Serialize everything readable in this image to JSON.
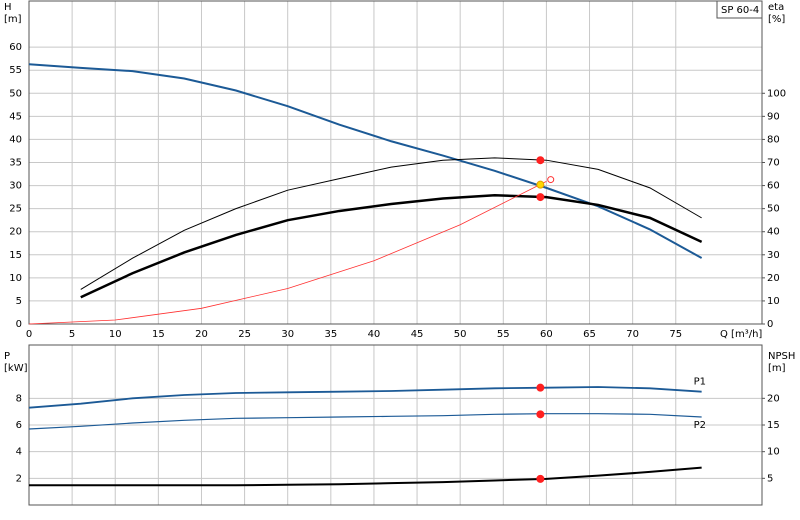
{
  "chart_data": [
    {
      "type": "line",
      "title": "SP 60-4",
      "ylabel": [
        "H",
        "[m]"
      ],
      "y2label": [
        "eta",
        "[%]"
      ],
      "xlabel": "Q [m³/h]",
      "xlim": [
        0,
        85
      ],
      "xticks": [
        0,
        5,
        10,
        15,
        20,
        25,
        30,
        35,
        40,
        45,
        50,
        55,
        60,
        65,
        70,
        75
      ],
      "ylim": [
        0,
        70
      ],
      "yticks": [
        0,
        5,
        10,
        15,
        20,
        25,
        30,
        35,
        40,
        45,
        50,
        55,
        60
      ],
      "y2lim": [
        0,
        140
      ],
      "y2ticks": [
        0,
        10,
        20,
        30,
        40,
        50,
        60,
        70,
        80,
        90,
        100
      ],
      "grid": true,
      "series": [
        {
          "color": "#1c5a96",
          "line_width": 2,
          "axis": "y",
          "x": [
            0,
            6,
            12,
            18,
            24,
            30,
            36,
            42,
            48,
            54,
            60,
            66,
            72,
            78
          ],
          "values": [
            56.3,
            55.5,
            54.8,
            53.2,
            50.6,
            47.2,
            43.2,
            39.6,
            36.5,
            33.2,
            29.5,
            25.5,
            20.5,
            14.3
          ]
        },
        {
          "color": "#000000",
          "line_width": 1,
          "axis": "y2",
          "x": [
            6,
            12,
            18,
            24,
            30,
            36,
            42,
            48,
            54,
            60,
            66,
            72,
            78
          ],
          "values": [
            15,
            28.5,
            40.6,
            50,
            58,
            63,
            68,
            71,
            72,
            71,
            67,
            59,
            46
          ]
        },
        {
          "color": "#000000",
          "line_width": 2.5,
          "axis": "y2",
          "x": [
            6,
            12,
            18,
            24,
            30,
            36,
            42,
            48,
            54,
            60,
            66,
            72,
            78
          ],
          "values": [
            11.6,
            22,
            31,
            38.6,
            45,
            49,
            52,
            54.4,
            55.8,
            55,
            51.6,
            46,
            35.6
          ]
        },
        {
          "color": "#ff3030",
          "line_width": 0.8,
          "axis": "y",
          "x": [
            0,
            10,
            20,
            30,
            40,
            50,
            60
          ],
          "values": [
            0,
            0.86,
            3.4,
            7.7,
            13.7,
            21.5,
            30.9
          ]
        }
      ],
      "points": [
        {
          "x": 59.3,
          "y": 30.2,
          "axis": "y",
          "color": "#ffd700"
        },
        {
          "x": 59.3,
          "y": 71,
          "axis": "y2",
          "color": "#ff2020"
        },
        {
          "x": 59.3,
          "y": 55,
          "axis": "y2",
          "color": "#ff2020"
        },
        {
          "x": 60.5,
          "y": 31.3,
          "axis": "y",
          "color": "none"
        }
      ]
    },
    {
      "type": "line",
      "ylabel": [
        "P",
        "[kW]"
      ],
      "y2label": [
        "NPSH",
        "[m]"
      ],
      "xlim": [
        0,
        85
      ],
      "xticks": [
        0,
        5,
        10,
        15,
        20,
        25,
        30,
        35,
        40,
        45,
        50,
        55,
        60,
        65,
        70,
        75
      ],
      "ylim": [
        0,
        12
      ],
      "yticks": [
        2,
        4,
        6,
        8
      ],
      "y2lim": [
        0,
        30
      ],
      "y2ticks": [
        5,
        10,
        15,
        20
      ],
      "grid": true,
      "series": [
        {
          "name": "P1",
          "color": "#1c5a96",
          "line_width": 1.8,
          "axis": "y",
          "x": [
            0,
            6,
            12,
            18,
            24,
            30,
            36,
            42,
            48,
            54,
            60,
            66,
            72,
            78
          ],
          "values": [
            7.3,
            7.6,
            8.0,
            8.25,
            8.4,
            8.45,
            8.5,
            8.55,
            8.65,
            8.75,
            8.8,
            8.85,
            8.75,
            8.5
          ]
        },
        {
          "name": "P2",
          "color": "#1c5a96",
          "line_width": 1.2,
          "axis": "y",
          "x": [
            0,
            6,
            12,
            18,
            24,
            30,
            36,
            42,
            48,
            54,
            60,
            66,
            72,
            78
          ],
          "values": [
            5.7,
            5.9,
            6.15,
            6.35,
            6.5,
            6.55,
            6.6,
            6.65,
            6.7,
            6.8,
            6.85,
            6.85,
            6.8,
            6.6
          ]
        },
        {
          "color": "#000000",
          "line_width": 2,
          "axis": "y2",
          "x": [
            0,
            6,
            12,
            18,
            24,
            30,
            36,
            42,
            48,
            54,
            60,
            66,
            72,
            78
          ],
          "values": [
            3.7,
            3.7,
            3.7,
            3.7,
            3.7,
            3.8,
            3.9,
            4.1,
            4.3,
            4.6,
            4.9,
            5.5,
            6.2,
            7.0
          ]
        }
      ],
      "points": [
        {
          "x": 59.3,
          "y": 8.8,
          "axis": "y",
          "color": "#ff2020"
        },
        {
          "x": 59.3,
          "y": 6.8,
          "axis": "y",
          "color": "#ff2020"
        },
        {
          "x": 59.3,
          "y": 4.9,
          "axis": "y2",
          "color": "#ff2020"
        }
      ]
    }
  ]
}
